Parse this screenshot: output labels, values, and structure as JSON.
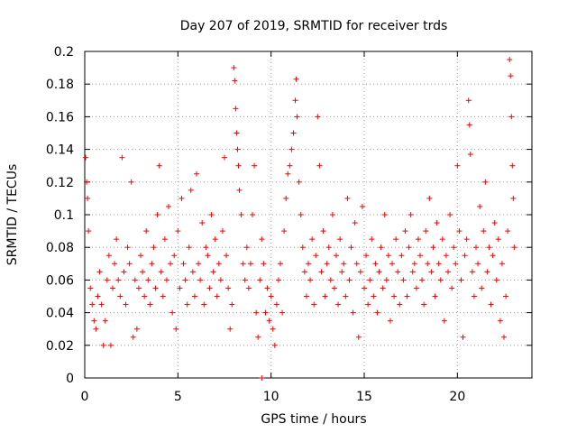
{
  "chart_data": {
    "type": "scatter",
    "title": "Day 207 of 2019, SRMTID for receiver trds",
    "xlabel": "GPS time / hours",
    "ylabel": "SRMTID / TECUs",
    "xlim": [
      0,
      24
    ],
    "ylim": [
      0,
      0.2
    ],
    "x_ticks": [
      0,
      5,
      10,
      15,
      20
    ],
    "x_tick_labels": [
      "0",
      "5",
      "10",
      "15",
      "20"
    ],
    "y_ticks": [
      0,
      0.02,
      0.04,
      0.06,
      0.08,
      0.1,
      0.12,
      0.14,
      0.16,
      0.18,
      0.2
    ],
    "y_tick_labels": [
      "0",
      "0.02",
      "0.04",
      "0.06",
      "0.08",
      "0.1",
      "0.12",
      "0.14",
      "0.16",
      "0.18",
      "0.2"
    ],
    "grid": true,
    "marker": "+",
    "series_color": "#ff0000",
    "series": [
      {
        "name": "SRMTID",
        "points": [
          [
            0.05,
            0.135
          ],
          [
            0.1,
            0.12
          ],
          [
            0.15,
            0.11
          ],
          [
            0.2,
            0.09
          ],
          [
            0.3,
            0.055
          ],
          [
            0.4,
            0.045
          ],
          [
            0.5,
            0.035
          ],
          [
            0.6,
            0.03
          ],
          [
            0.7,
            0.05
          ],
          [
            0.8,
            0.065
          ],
          [
            0.9,
            0.045
          ],
          [
            1.0,
            0.02
          ],
          [
            1.1,
            0.035
          ],
          [
            1.2,
            0.06
          ],
          [
            1.3,
            0.075
          ],
          [
            1.4,
            0.02
          ],
          [
            1.5,
            0.055
          ],
          [
            1.6,
            0.07
          ],
          [
            1.7,
            0.085
          ],
          [
            1.8,
            0.06
          ],
          [
            1.9,
            0.05
          ],
          [
            2.0,
            0.135
          ],
          [
            2.1,
            0.065
          ],
          [
            2.2,
            0.045
          ],
          [
            2.3,
            0.08
          ],
          [
            2.4,
            0.07
          ],
          [
            2.5,
            0.12
          ],
          [
            2.6,
            0.025
          ],
          [
            2.7,
            0.06
          ],
          [
            2.8,
            0.03
          ],
          [
            2.9,
            0.055
          ],
          [
            3.0,
            0.075
          ],
          [
            3.1,
            0.065
          ],
          [
            3.2,
            0.05
          ],
          [
            3.3,
            0.09
          ],
          [
            3.4,
            0.06
          ],
          [
            3.5,
            0.045
          ],
          [
            3.6,
            0.07
          ],
          [
            3.7,
            0.08
          ],
          [
            3.8,
            0.055
          ],
          [
            3.9,
            0.1
          ],
          [
            4.0,
            0.13
          ],
          [
            4.1,
            0.065
          ],
          [
            4.2,
            0.05
          ],
          [
            4.3,
            0.085
          ],
          [
            4.4,
            0.06
          ],
          [
            4.5,
            0.105
          ],
          [
            4.6,
            0.07
          ],
          [
            4.7,
            0.04
          ],
          [
            4.8,
            0.075
          ],
          [
            4.9,
            0.03
          ],
          [
            5.0,
            0.09
          ],
          [
            5.1,
            0.055
          ],
          [
            5.2,
            0.11
          ],
          [
            5.3,
            0.07
          ],
          [
            5.4,
            0.06
          ],
          [
            5.5,
            0.045
          ],
          [
            5.6,
            0.08
          ],
          [
            5.7,
            0.115
          ],
          [
            5.8,
            0.065
          ],
          [
            5.9,
            0.05
          ],
          [
            6.0,
            0.125
          ],
          [
            6.1,
            0.07
          ],
          [
            6.2,
            0.06
          ],
          [
            6.3,
            0.095
          ],
          [
            6.4,
            0.045
          ],
          [
            6.5,
            0.08
          ],
          [
            6.6,
            0.075
          ],
          [
            6.7,
            0.055
          ],
          [
            6.8,
            0.1
          ],
          [
            6.9,
            0.065
          ],
          [
            7.0,
            0.085
          ],
          [
            7.1,
            0.05
          ],
          [
            7.2,
            0.07
          ],
          [
            7.3,
            0.06
          ],
          [
            7.4,
            0.09
          ],
          [
            7.5,
            0.135
          ],
          [
            7.6,
            0.075
          ],
          [
            7.7,
            0.055
          ],
          [
            7.8,
            0.03
          ],
          [
            7.9,
            0.045
          ],
          [
            8.0,
            0.19
          ],
          [
            8.05,
            0.182
          ],
          [
            8.1,
            0.165
          ],
          [
            8.15,
            0.15
          ],
          [
            8.2,
            0.14
          ],
          [
            8.25,
            0.13
          ],
          [
            8.3,
            0.115
          ],
          [
            8.4,
            0.1
          ],
          [
            8.5,
            0.07
          ],
          [
            8.6,
            0.06
          ],
          [
            8.7,
            0.08
          ],
          [
            8.8,
            0.055
          ],
          [
            8.9,
            0.07
          ],
          [
            9.0,
            0.1
          ],
          [
            9.1,
            0.13
          ],
          [
            9.2,
            0.04
          ],
          [
            9.3,
            0.025
          ],
          [
            9.4,
            0.06
          ],
          [
            9.5,
            0.085
          ],
          [
            9.6,
            0.07
          ],
          [
            9.7,
            0.04
          ],
          [
            9.8,
            0.055
          ],
          [
            9.9,
            0.035
          ],
          [
            10.0,
            0.05
          ],
          [
            10.1,
            0.03
          ],
          [
            10.2,
            0.02
          ],
          [
            10.3,
            0.045
          ],
          [
            10.4,
            0.06
          ],
          [
            10.5,
            0.07
          ],
          [
            10.6,
            0.04
          ],
          [
            10.7,
            0.09
          ],
          [
            10.8,
            0.11
          ],
          [
            10.9,
            0.125
          ],
          [
            11.0,
            0.13
          ],
          [
            11.1,
            0.14
          ],
          [
            11.2,
            0.15
          ],
          [
            11.3,
            0.17
          ],
          [
            11.35,
            0.183
          ],
          [
            11.4,
            0.16
          ],
          [
            11.5,
            0.12
          ],
          [
            11.6,
            0.1
          ],
          [
            11.7,
            0.08
          ],
          [
            11.8,
            0.065
          ],
          [
            11.9,
            0.05
          ],
          [
            12.0,
            0.07
          ],
          [
            12.1,
            0.06
          ],
          [
            12.2,
            0.085
          ],
          [
            12.3,
            0.045
          ],
          [
            12.4,
            0.075
          ],
          [
            12.5,
            0.16
          ],
          [
            12.6,
            0.13
          ],
          [
            12.7,
            0.065
          ],
          [
            12.8,
            0.09
          ],
          [
            12.9,
            0.05
          ],
          [
            13.0,
            0.07
          ],
          [
            13.1,
            0.08
          ],
          [
            13.2,
            0.06
          ],
          [
            13.3,
            0.1
          ],
          [
            13.4,
            0.055
          ],
          [
            13.5,
            0.075
          ],
          [
            13.6,
            0.045
          ],
          [
            13.7,
            0.085
          ],
          [
            13.8,
            0.065
          ],
          [
            13.9,
            0.07
          ],
          [
            14.0,
            0.05
          ],
          [
            14.1,
            0.11
          ],
          [
            14.2,
            0.06
          ],
          [
            14.3,
            0.08
          ],
          [
            14.4,
            0.04
          ],
          [
            14.5,
            0.095
          ],
          [
            14.6,
            0.07
          ],
          [
            14.7,
            0.025
          ],
          [
            14.8,
            0.065
          ],
          [
            14.9,
            0.105
          ],
          [
            15.0,
            0.055
          ],
          [
            15.1,
            0.075
          ],
          [
            15.2,
            0.045
          ],
          [
            15.3,
            0.06
          ],
          [
            15.4,
            0.085
          ],
          [
            15.5,
            0.05
          ],
          [
            15.6,
            0.07
          ],
          [
            15.7,
            0.04
          ],
          [
            15.8,
            0.065
          ],
          [
            15.9,
            0.08
          ],
          [
            16.0,
            0.055
          ],
          [
            16.1,
            0.1
          ],
          [
            16.2,
            0.06
          ],
          [
            16.3,
            0.075
          ],
          [
            16.4,
            0.035
          ],
          [
            16.5,
            0.07
          ],
          [
            16.6,
            0.05
          ],
          [
            16.7,
            0.085
          ],
          [
            16.8,
            0.065
          ],
          [
            16.9,
            0.045
          ],
          [
            17.0,
            0.075
          ],
          [
            17.1,
            0.06
          ],
          [
            17.2,
            0.09
          ],
          [
            17.3,
            0.05
          ],
          [
            17.4,
            0.08
          ],
          [
            17.5,
            0.1
          ],
          [
            17.6,
            0.065
          ],
          [
            17.7,
            0.07
          ],
          [
            17.8,
            0.055
          ],
          [
            17.9,
            0.085
          ],
          [
            18.0,
            0.075
          ],
          [
            18.1,
            0.06
          ],
          [
            18.2,
            0.045
          ],
          [
            18.3,
            0.09
          ],
          [
            18.4,
            0.07
          ],
          [
            18.5,
            0.11
          ],
          [
            18.6,
            0.065
          ],
          [
            18.7,
            0.08
          ],
          [
            18.8,
            0.05
          ],
          [
            18.9,
            0.095
          ],
          [
            19.0,
            0.07
          ],
          [
            19.1,
            0.06
          ],
          [
            19.2,
            0.085
          ],
          [
            19.3,
            0.035
          ],
          [
            19.4,
            0.075
          ],
          [
            19.5,
            0.065
          ],
          [
            19.6,
            0.1
          ],
          [
            19.7,
            0.055
          ],
          [
            19.8,
            0.08
          ],
          [
            19.9,
            0.07
          ],
          [
            20.0,
            0.13
          ],
          [
            20.1,
            0.09
          ],
          [
            20.2,
            0.06
          ],
          [
            20.3,
            0.025
          ],
          [
            20.4,
            0.075
          ],
          [
            20.5,
            0.085
          ],
          [
            20.6,
            0.17
          ],
          [
            20.65,
            0.155
          ],
          [
            20.7,
            0.137
          ],
          [
            20.8,
            0.065
          ],
          [
            20.9,
            0.05
          ],
          [
            21.0,
            0.08
          ],
          [
            21.1,
            0.07
          ],
          [
            21.2,
            0.105
          ],
          [
            21.3,
            0.055
          ],
          [
            21.4,
            0.09
          ],
          [
            21.5,
            0.12
          ],
          [
            21.6,
            0.065
          ],
          [
            21.7,
            0.08
          ],
          [
            21.8,
            0.045
          ],
          [
            21.9,
            0.075
          ],
          [
            22.0,
            0.095
          ],
          [
            22.1,
            0.06
          ],
          [
            22.2,
            0.085
          ],
          [
            22.3,
            0.035
          ],
          [
            22.4,
            0.07
          ],
          [
            22.5,
            0.025
          ],
          [
            22.6,
            0.05
          ],
          [
            22.7,
            0.09
          ],
          [
            22.8,
            0.195
          ],
          [
            22.85,
            0.185
          ],
          [
            22.9,
            0.16
          ],
          [
            22.95,
            0.13
          ],
          [
            23.0,
            0.11
          ],
          [
            23.05,
            0.08
          ],
          [
            9.5,
            0.0
          ]
        ]
      }
    ]
  }
}
